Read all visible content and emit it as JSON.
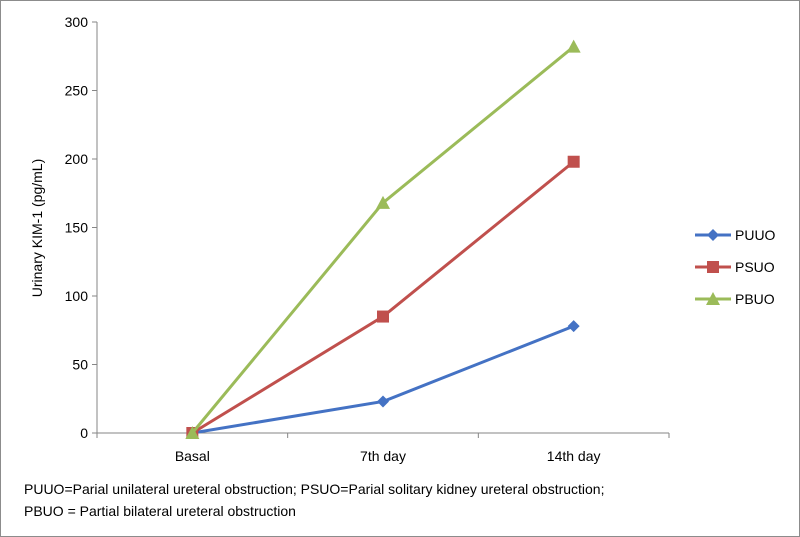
{
  "chart_data": {
    "type": "line",
    "categories": [
      "Basal",
      "7th day",
      "14th day"
    ],
    "ylabel": "Urinary KIM-1 (pg/mL)",
    "ylim": [
      0,
      300
    ],
    "yticks": [
      0,
      50,
      100,
      150,
      200,
      250,
      300
    ],
    "grid": false,
    "legend_position": "right",
    "series": [
      {
        "name": "PUUO",
        "values": [
          0,
          23,
          78
        ],
        "color": "#4472c4",
        "marker": "diamond"
      },
      {
        "name": "PSUO",
        "values": [
          0,
          85,
          198
        ],
        "color": "#c0504d",
        "marker": "square"
      },
      {
        "name": "PBUO",
        "values": [
          0,
          168,
          282
        ],
        "color": "#9bbb59",
        "marker": "triangle"
      }
    ]
  },
  "footnote": {
    "line1": "PUUO=Parial unilateral ureteral obstruction; PSUO=Parial solitary kidney ureteral obstruction;",
    "line2": "PBUO = Partial bilateral ureteral obstruction"
  }
}
